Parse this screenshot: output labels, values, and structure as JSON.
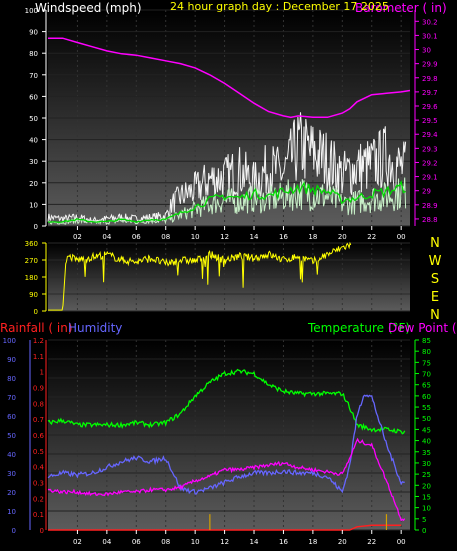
{
  "header": {
    "wind_label": "Windspeed (mph)",
    "date_label": "24 hour graph day : December 17 2025",
    "baro_label": "Barometer ( in)"
  },
  "compass": [
    "N",
    "W",
    "S",
    "E",
    "N"
  ],
  "bottom_labels": {
    "rain": "Rainfall ( in)",
    "humidity": "Humidity",
    "temp": "Temperature (°F)",
    "dew": "Dew Point (°F)"
  },
  "colors": {
    "wind_axis": "#ffffff",
    "baro": "#ff00ff",
    "gust": "#f4f4f4",
    "wind_avg": "#c8f0c8",
    "wind_green": "#00dd00",
    "direction": "#ffff00",
    "rain": "#ff2020",
    "humidity": "#6666ff",
    "temp": "#00ff00",
    "dew": "#ff00ff",
    "rain_rate": "#d4a000"
  },
  "chart_data": [
    {
      "type": "line",
      "title": "24 hour graph day : December 17 2025",
      "x_tick_labels": [
        "02",
        "04",
        "06",
        "08",
        "10",
        "12",
        "14",
        "16",
        "18",
        "20",
        "22",
        "00"
      ],
      "x_hours": [
        2,
        4,
        6,
        8,
        10,
        12,
        14,
        16,
        18,
        20,
        22,
        24
      ],
      "xlim": [
        0,
        24.6
      ],
      "y_left": {
        "label": "Windspeed (mph)",
        "ticks": [
          0,
          10,
          20,
          30,
          40,
          50,
          60,
          70,
          80,
          90,
          100
        ],
        "ylim": [
          0,
          100
        ]
      },
      "y_right": {
        "label": "Barometer ( in)",
        "ticks": [
          28.8,
          28.9,
          29.0,
          29.1,
          29.2,
          29.3,
          29.4,
          29.5,
          29.6,
          29.7,
          29.8,
          29.9,
          30.0,
          30.1,
          30.2
        ],
        "tick_labels": [
          "28.8",
          "28.9",
          "29",
          "29.1",
          "29.2",
          "29.3",
          "29.4",
          "29.5",
          "29.6",
          "29.7",
          "29.8",
          "29.9",
          "30",
          "30.1",
          "30.2"
        ],
        "ylim": [
          28.75,
          30.28
        ]
      },
      "series": [
        {
          "name": "Barometer",
          "axis": "right",
          "x": [
            0,
            1,
            2,
            3,
            4,
            5,
            6,
            7,
            8,
            9,
            10,
            11,
            12,
            13,
            14,
            15,
            16,
            16.5,
            17,
            18,
            19,
            20,
            20.5,
            21,
            22,
            23,
            24,
            24.6
          ],
          "y": [
            30.08,
            30.08,
            30.05,
            30.02,
            29.99,
            29.97,
            29.96,
            29.94,
            29.92,
            29.9,
            29.87,
            29.82,
            29.76,
            29.69,
            29.62,
            29.56,
            29.53,
            29.52,
            29.53,
            29.52,
            29.52,
            29.55,
            29.58,
            29.63,
            29.68,
            29.69,
            29.7,
            29.71
          ]
        },
        {
          "name": "Wind gust",
          "axis": "left",
          "x": [
            0,
            1,
            2,
            3,
            4,
            5,
            6,
            7,
            8,
            8.5,
            9,
            10,
            11,
            12,
            13,
            14,
            15,
            16,
            17,
            18,
            19,
            20,
            21,
            22,
            23,
            24
          ],
          "y": [
            6,
            5,
            6,
            4,
            5,
            6,
            5,
            6,
            7,
            16,
            20,
            25,
            32,
            33,
            38,
            30,
            40,
            36,
            55,
            50,
            45,
            35,
            40,
            42,
            48,
            40
          ]
        },
        {
          "name": "Wind average",
          "axis": "left",
          "x": [
            0,
            1,
            2,
            3,
            4,
            5,
            6,
            7,
            8,
            9,
            10,
            11,
            12,
            13,
            14,
            15,
            16,
            17,
            18,
            19,
            20,
            21,
            22,
            23,
            24
          ],
          "y": [
            2,
            2,
            3,
            2,
            2,
            3,
            2,
            3,
            3,
            6,
            9,
            12,
            14,
            13,
            15,
            14,
            16,
            18,
            17,
            16,
            12,
            13,
            15,
            16,
            18
          ]
        }
      ]
    },
    {
      "type": "line",
      "y_left": {
        "ticks": [
          0,
          90,
          180,
          270,
          360
        ],
        "ylim": [
          0,
          360
        ]
      },
      "right_labels": [
        "N",
        "W",
        "S",
        "E",
        "N"
      ],
      "x_tick_labels": [],
      "series": [
        {
          "name": "Wind direction",
          "axis": "left",
          "x": [
            0,
            0.5,
            1,
            1.2,
            1.4,
            2,
            3,
            4,
            5,
            6,
            7,
            8,
            9,
            10,
            11,
            12,
            13,
            14,
            15,
            16,
            17,
            18,
            19,
            20,
            20.5
          ],
          "y": [
            5,
            5,
            5,
            250,
            290,
            270,
            285,
            300,
            270,
            260,
            280,
            250,
            270,
            265,
            300,
            270,
            290,
            280,
            300,
            270,
            290,
            260,
            300,
            335,
            350
          ]
        }
      ]
    },
    {
      "type": "line",
      "x_tick_labels": [
        "02",
        "04",
        "06",
        "08",
        "10",
        "12",
        "14",
        "16",
        "18",
        "20",
        "22",
        "00"
      ],
      "x_hours": [
        2,
        4,
        6,
        8,
        10,
        12,
        14,
        16,
        18,
        20,
        22,
        24
      ],
      "y_humidity": {
        "label": "Humidity",
        "ticks": [
          0,
          10,
          20,
          30,
          40,
          50,
          60,
          70,
          80,
          90,
          100
        ],
        "ylim": [
          0,
          100
        ]
      },
      "y_rain": {
        "label": "Rainfall ( in)",
        "ticks": [
          0,
          0.1,
          0.2,
          0.3,
          0.4,
          0.5,
          0.6,
          0.7,
          0.8,
          0.9,
          1,
          1.1,
          1.2
        ],
        "ylim": [
          0,
          1.2
        ]
      },
      "y_temp": {
        "label": "Temperature (°F)",
        "ticks": [
          0,
          5,
          10,
          15,
          20,
          25,
          30,
          35,
          40,
          45,
          50,
          55,
          60,
          65,
          70,
          75,
          80,
          85
        ],
        "ylim": [
          0,
          85
        ]
      },
      "series": [
        {
          "name": "Temperature",
          "axis": "temp",
          "x": [
            0,
            1,
            2,
            3,
            4,
            5,
            6,
            7,
            8,
            9,
            10,
            11,
            12,
            13,
            14,
            15,
            16,
            17,
            18,
            19,
            20,
            20.5,
            21,
            22,
            23,
            24
          ],
          "y": [
            48,
            49,
            47,
            47,
            47,
            47,
            48,
            47,
            48,
            52,
            60,
            66,
            70,
            71,
            70,
            65,
            62,
            61,
            61,
            61,
            61,
            55,
            47,
            45,
            45,
            44
          ]
        },
        {
          "name": "Humidity",
          "axis": "humidity",
          "x": [
            0,
            1,
            2,
            3,
            4,
            5,
            6,
            7,
            8,
            9,
            10,
            11,
            12,
            13,
            14,
            15,
            16,
            17,
            18,
            19,
            20,
            20.5,
            21,
            21.5,
            22,
            23,
            24
          ],
          "y": [
            28,
            30,
            29,
            30,
            33,
            36,
            38,
            36,
            38,
            22,
            20,
            22,
            25,
            28,
            30,
            30,
            31,
            30,
            30,
            28,
            20,
            34,
            60,
            72,
            70,
            45,
            25
          ]
        },
        {
          "name": "Dew Point",
          "axis": "temp",
          "x": [
            0,
            1,
            2,
            3,
            4,
            5,
            6,
            7,
            8,
            9,
            10,
            11,
            12,
            13,
            14,
            15,
            16,
            17,
            18,
            19,
            20,
            20.5,
            21,
            22,
            23,
            24
          ],
          "y": [
            18,
            17,
            17,
            16,
            16,
            17,
            17,
            18,
            18,
            19,
            22,
            24,
            27,
            27,
            28,
            29,
            30,
            28,
            27,
            26,
            25,
            32,
            40,
            38,
            22,
            5
          ]
        },
        {
          "name": "Rainfall",
          "axis": "rain",
          "x": [
            0,
            20.5,
            21,
            22,
            23,
            24
          ],
          "y": [
            0,
            0,
            0.02,
            0.03,
            0.03,
            0.03
          ]
        },
        {
          "name": "Rain rate",
          "axis": "rain",
          "x": [
            11,
            23
          ],
          "y": [
            0.1,
            0.1
          ]
        }
      ]
    }
  ]
}
